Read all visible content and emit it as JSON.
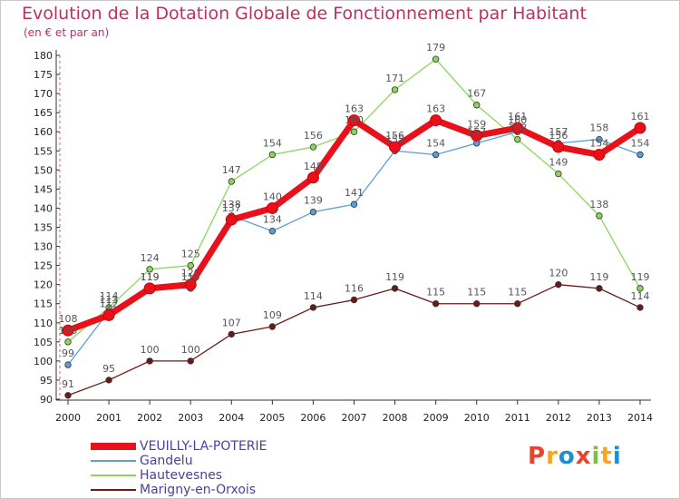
{
  "title": "Evolution de la Dotation Globale de Fonctionnement par Habitant",
  "subtitle": "(en € et par an)",
  "logo": {
    "text": "Proxiti",
    "colors": [
      "#e8442a",
      "#f5a623",
      "#1a8fd6",
      "#e8442a",
      "#7ac143",
      "#f5a623",
      "#1a8fd6"
    ]
  },
  "chart_data": {
    "type": "line",
    "x": [
      "2000",
      "2001",
      "2002",
      "2003",
      "2004",
      "2005",
      "2006",
      "2007",
      "2008",
      "2009",
      "2010",
      "2011",
      "2012",
      "2013",
      "2014"
    ],
    "ylim": [
      90,
      180
    ],
    "yticks": [
      90,
      95,
      100,
      105,
      110,
      115,
      120,
      125,
      130,
      135,
      140,
      145,
      150,
      155,
      160,
      165,
      170,
      175,
      180
    ],
    "grid": false,
    "legend_position": "bottom-left",
    "series": [
      {
        "name": "VEUILLY-LA-POTERIE",
        "color": "#e8111b",
        "values": [
          108,
          112,
          119,
          120,
          137,
          140,
          148,
          163,
          156,
          163,
          159,
          161,
          156,
          154,
          161
        ]
      },
      {
        "name": "Gandelu",
        "color": "#5b9fd5",
        "values": [
          99,
          113,
          119,
          119,
          138,
          134,
          139,
          141,
          155,
          154,
          157,
          160,
          157,
          158,
          154
        ]
      },
      {
        "name": "Hautevesnes",
        "color": "#8bd65a",
        "values": [
          105,
          114,
          124,
          125,
          147,
          154,
          156,
          160,
          171,
          179,
          167,
          158,
          149,
          138,
          119
        ]
      },
      {
        "name": "Marigny-en-Orxois",
        "color": "#6b1a1a",
        "values": [
          91,
          95,
          100,
          100,
          107,
          109,
          114,
          116,
          119,
          115,
          115,
          115,
          120,
          119,
          114
        ]
      }
    ]
  }
}
